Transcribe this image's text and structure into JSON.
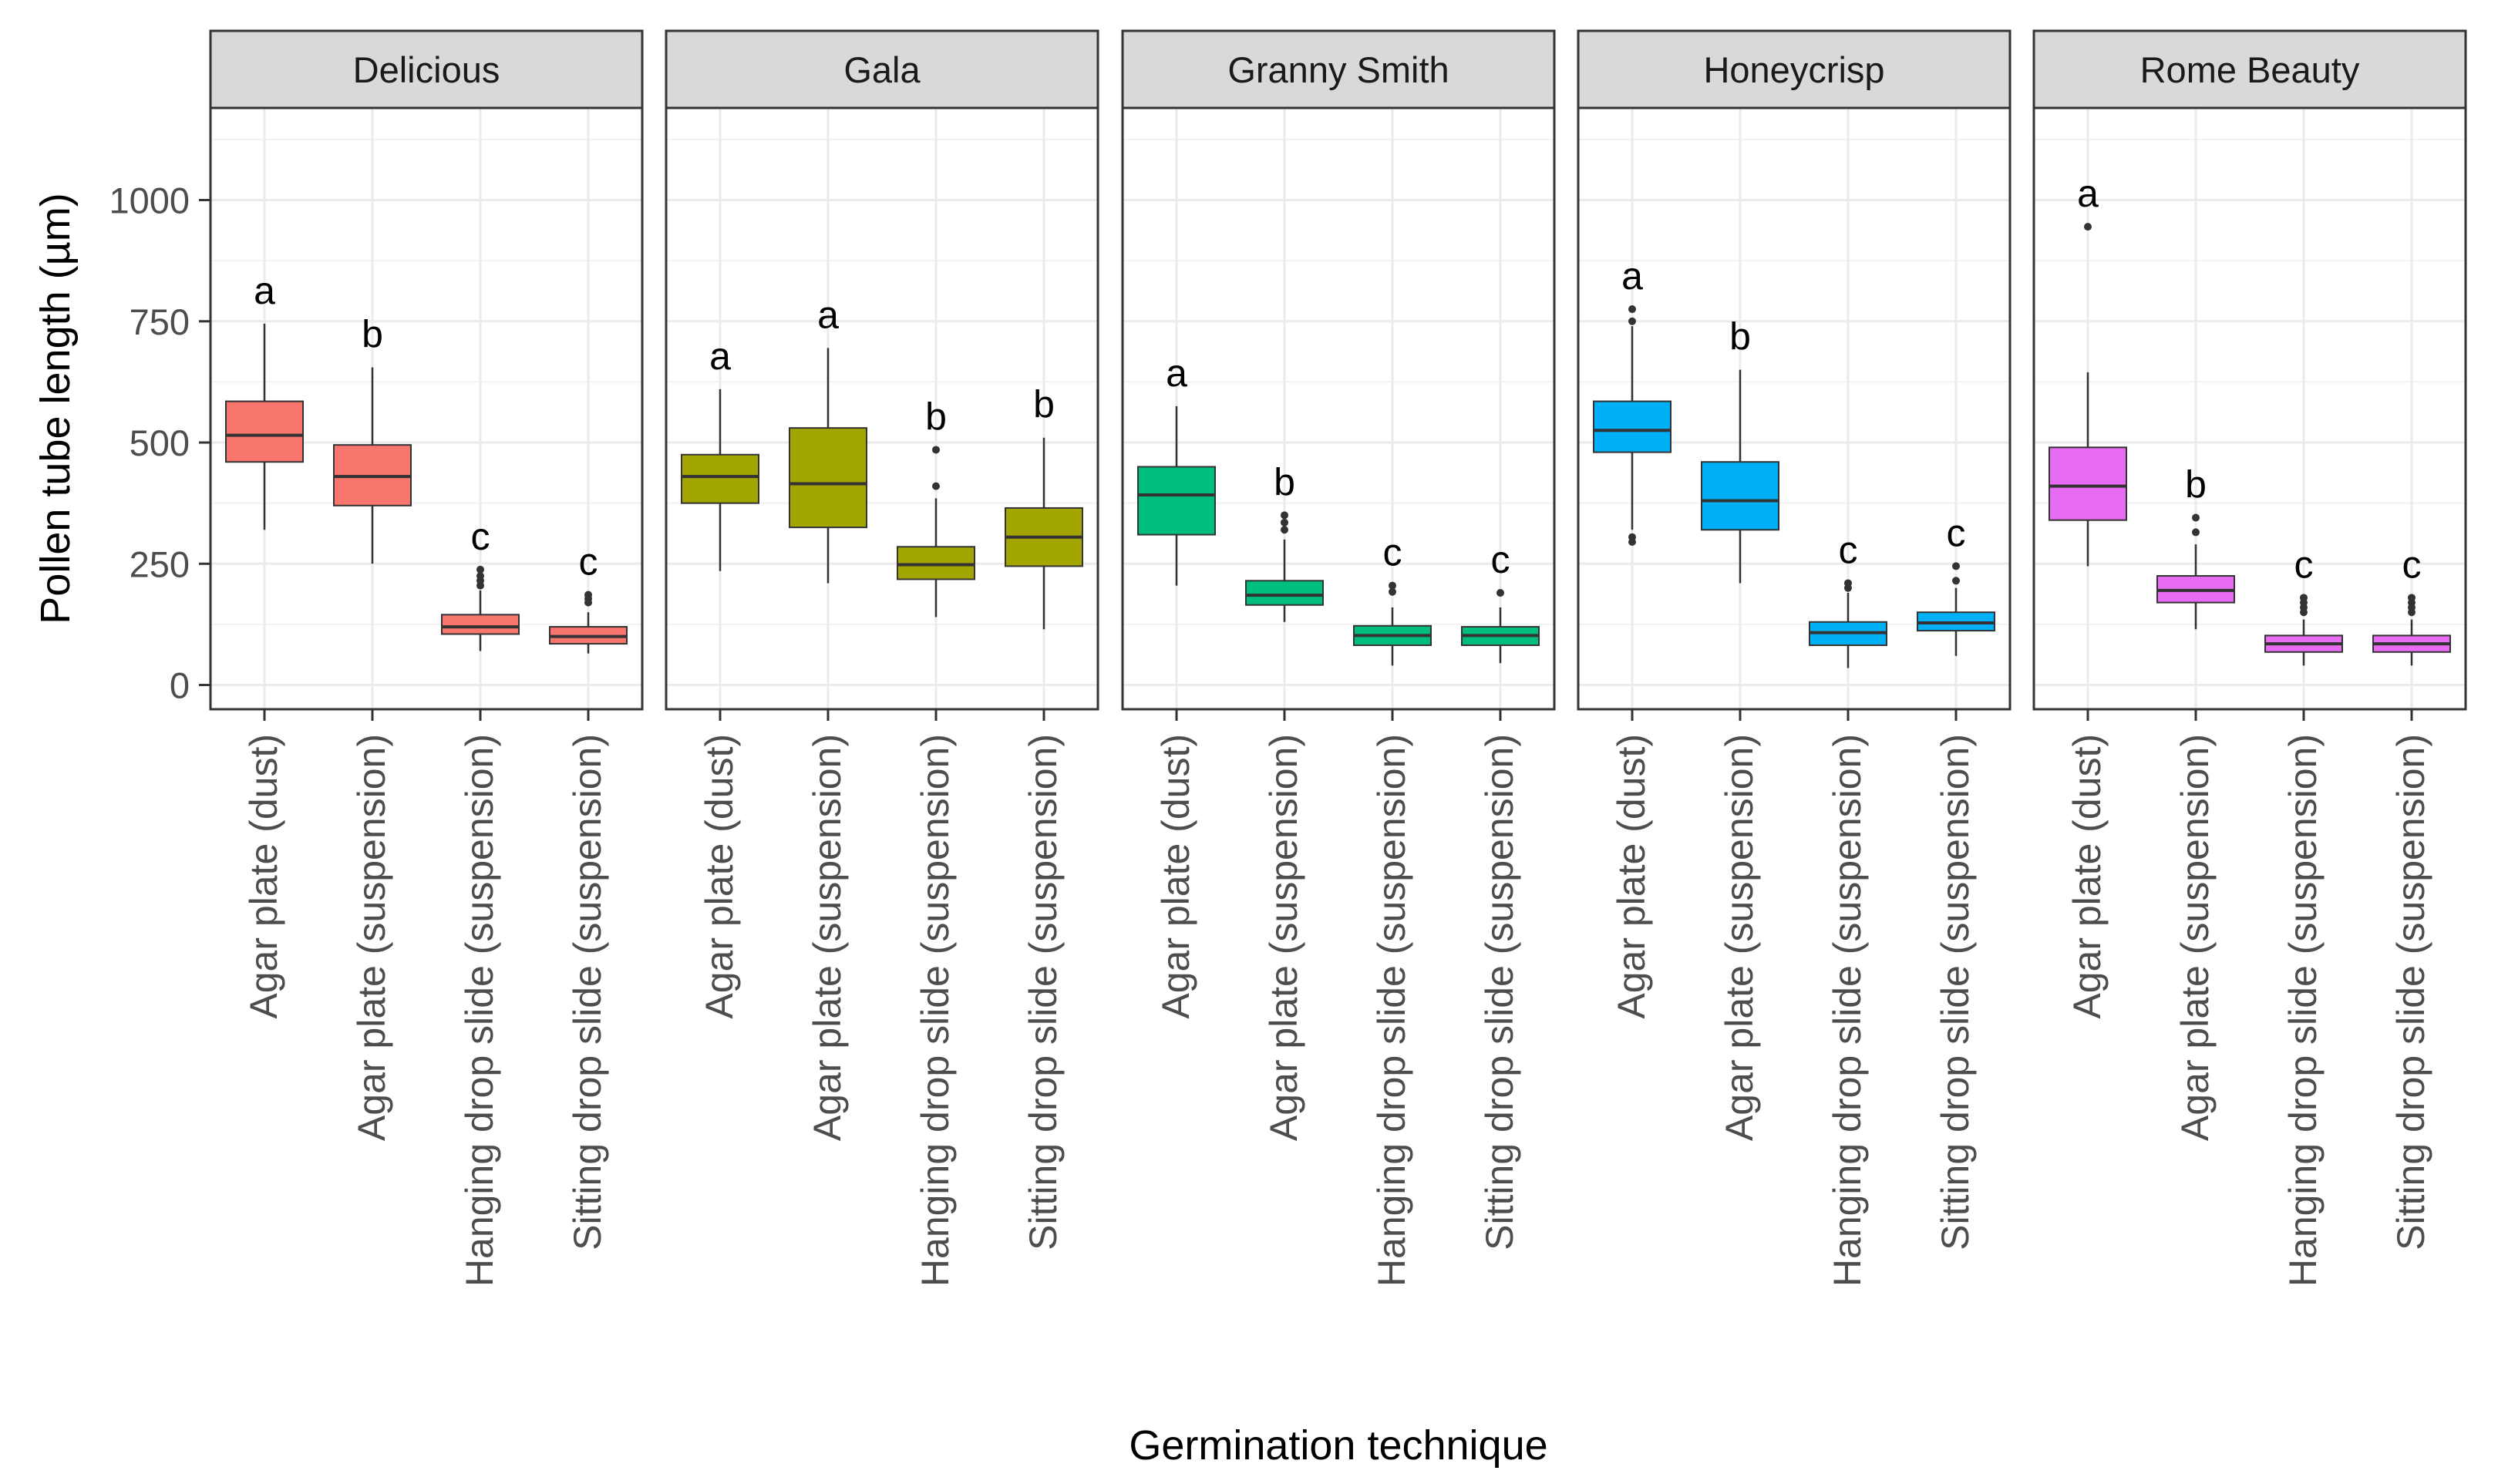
{
  "chart_data": {
    "type": "boxplot",
    "xlabel": "Germination technique",
    "ylabel": "Pollen tube length (µm)",
    "ylim": [
      -50,
      1190
    ],
    "yticks": [
      0,
      250,
      500,
      750,
      1000
    ],
    "ytick_labels": [
      "0",
      "250",
      "500",
      "750",
      "1000"
    ],
    "categories": [
      "Agar plate (dust)",
      "Agar plate (suspension)",
      "Hanging drop slide (suspension)",
      "Sitting drop slide (suspension)"
    ],
    "panels": [
      {
        "name": "Delicious",
        "color": "#F8766D",
        "boxes": [
          {
            "min": 320,
            "q1": 460,
            "median": 515,
            "q3": 585,
            "max": 745,
            "outliers": [],
            "letter": "a"
          },
          {
            "min": 250,
            "q1": 370,
            "median": 430,
            "q3": 495,
            "max": 655,
            "outliers": [],
            "letter": "b"
          },
          {
            "min": 70,
            "q1": 105,
            "median": 120,
            "q3": 145,
            "max": 195,
            "outliers": [
              205,
              215,
              225,
              238
            ],
            "letter": "c"
          },
          {
            "min": 65,
            "q1": 85,
            "median": 100,
            "q3": 120,
            "max": 150,
            "outliers": [
              170,
              178,
              186
            ],
            "letter": "c"
          }
        ]
      },
      {
        "name": "Gala",
        "color": "#A3A500",
        "boxes": [
          {
            "min": 235,
            "q1": 375,
            "median": 430,
            "q3": 475,
            "max": 610,
            "outliers": [],
            "letter": "a"
          },
          {
            "min": 210,
            "q1": 325,
            "median": 415,
            "q3": 530,
            "max": 695,
            "outliers": [],
            "letter": "a"
          },
          {
            "min": 140,
            "q1": 218,
            "median": 248,
            "q3": 285,
            "max": 385,
            "outliers": [
              410,
              485
            ],
            "letter": "b"
          },
          {
            "min": 115,
            "q1": 245,
            "median": 305,
            "q3": 365,
            "max": 510,
            "outliers": [],
            "letter": "b"
          }
        ]
      },
      {
        "name": "Granny Smith",
        "color": "#00BF7D",
        "boxes": [
          {
            "min": 205,
            "q1": 310,
            "median": 392,
            "q3": 450,
            "max": 575,
            "outliers": [],
            "letter": "a"
          },
          {
            "min": 130,
            "q1": 165,
            "median": 185,
            "q3": 215,
            "max": 300,
            "outliers": [
              320,
              335,
              350
            ],
            "letter": "b"
          },
          {
            "min": 40,
            "q1": 82,
            "median": 102,
            "q3": 122,
            "max": 160,
            "outliers": [
              192,
              205
            ],
            "letter": "c"
          },
          {
            "min": 45,
            "q1": 82,
            "median": 102,
            "q3": 120,
            "max": 160,
            "outliers": [
              190
            ],
            "letter": "c"
          }
        ]
      },
      {
        "name": "Honeycrisp",
        "color": "#00B0F6",
        "boxes": [
          {
            "min": 320,
            "q1": 480,
            "median": 525,
            "q3": 585,
            "max": 740,
            "outliers": [
              295,
              305,
              750,
              775
            ],
            "letter": "a"
          },
          {
            "min": 210,
            "q1": 320,
            "median": 380,
            "q3": 460,
            "max": 650,
            "outliers": [],
            "letter": "b"
          },
          {
            "min": 35,
            "q1": 82,
            "median": 108,
            "q3": 130,
            "max": 190,
            "outliers": [
              200,
              210
            ],
            "letter": "c"
          },
          {
            "min": 60,
            "q1": 112,
            "median": 128,
            "q3": 150,
            "max": 200,
            "outliers": [
              215,
              245
            ],
            "letter": "c"
          }
        ]
      },
      {
        "name": "Rome Beauty",
        "color": "#E76BF3",
        "boxes": [
          {
            "min": 245,
            "q1": 340,
            "median": 410,
            "q3": 490,
            "max": 645,
            "outliers": [
              945
            ],
            "letter": "a"
          },
          {
            "min": 115,
            "q1": 170,
            "median": 195,
            "q3": 225,
            "max": 290,
            "outliers": [
              315,
              345
            ],
            "letter": "b"
          },
          {
            "min": 40,
            "q1": 68,
            "median": 85,
            "q3": 102,
            "max": 135,
            "outliers": [
              150,
              160,
              170,
              180
            ],
            "letter": "c"
          },
          {
            "min": 40,
            "q1": 68,
            "median": 85,
            "q3": 102,
            "max": 135,
            "outliers": [
              150,
              160,
              170,
              180
            ],
            "letter": "c"
          }
        ]
      }
    ]
  }
}
